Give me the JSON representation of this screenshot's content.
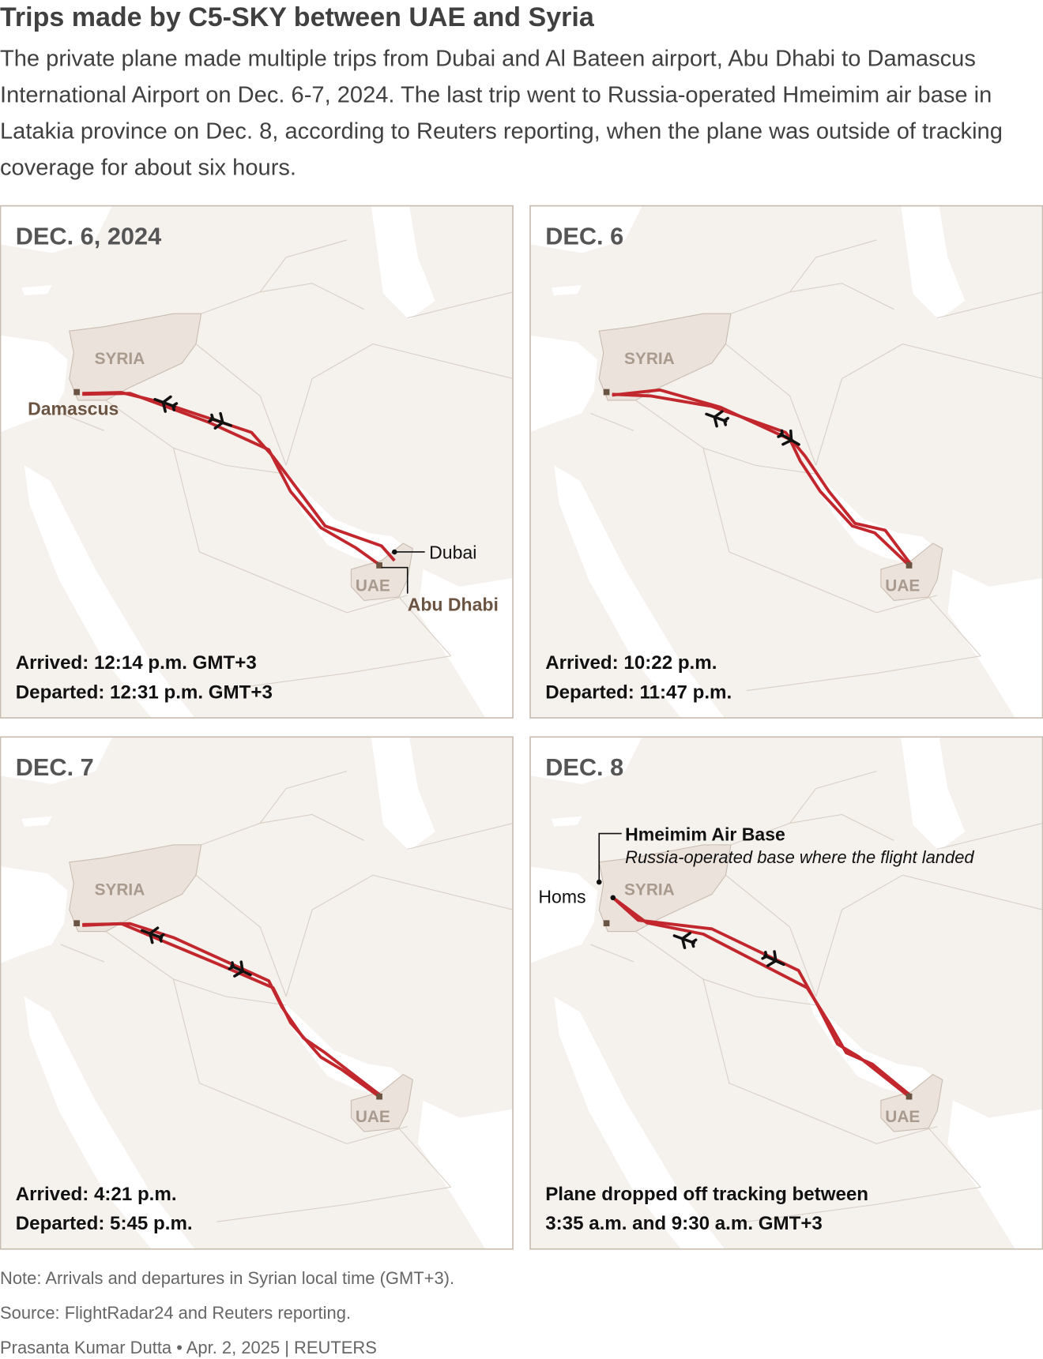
{
  "header": {
    "title": "Trips made by C5-SKY between UAE and Syria",
    "subtitle": "The private plane made multiple trips from Dubai and Al Bateen airport, Abu Dhabi to Damascus International Airport on Dec. 6-7, 2024. The last trip went to Russia-operated Hmeimim air base in Latakia province on Dec. 8, according to Reuters reporting, when the plane was outside of tracking coverage for about six hours."
  },
  "panels": [
    {
      "title": "DEC. 6, 2024",
      "syria": "SYRIA",
      "uae": "UAE",
      "damascus": "Damascus",
      "dubai": "Dubai",
      "abu_dhabi": "Abu Dhabi",
      "notes": [
        "Arrived: 12:14 p.m. GMT+3",
        "Departed: 12:31 p.m. GMT+3"
      ]
    },
    {
      "title": "DEC. 6",
      "syria": "SYRIA",
      "uae": "UAE",
      "notes": [
        "Arrived: 10:22 p.m.",
        "Departed: 11:47 p.m."
      ]
    },
    {
      "title": "DEC. 7",
      "syria": "SYRIA",
      "uae": "UAE",
      "notes": [
        "Arrived: 4:21 p.m.",
        "Departed: 5:45 p.m."
      ]
    },
    {
      "title": "DEC. 8",
      "syria": "SYRIA",
      "uae": "UAE",
      "hmeimim": "Hmeimim Air Base",
      "hmeimim_note": "Russia-operated base where the flight landed",
      "homs": "Homs",
      "notes": [
        "Plane dropped off tracking between",
        "3:35 a.m. and 9:30 a.m. GMT+3"
      ]
    }
  ],
  "footer": {
    "note": "Note: Arrivals and departures in Syrian local time (GMT+3).",
    "source": "Source: FlightRadar24 and Reuters reporting.",
    "credit": "Prasanta Kumar Dutta • Apr. 2, 2025 | REUTERS"
  }
}
